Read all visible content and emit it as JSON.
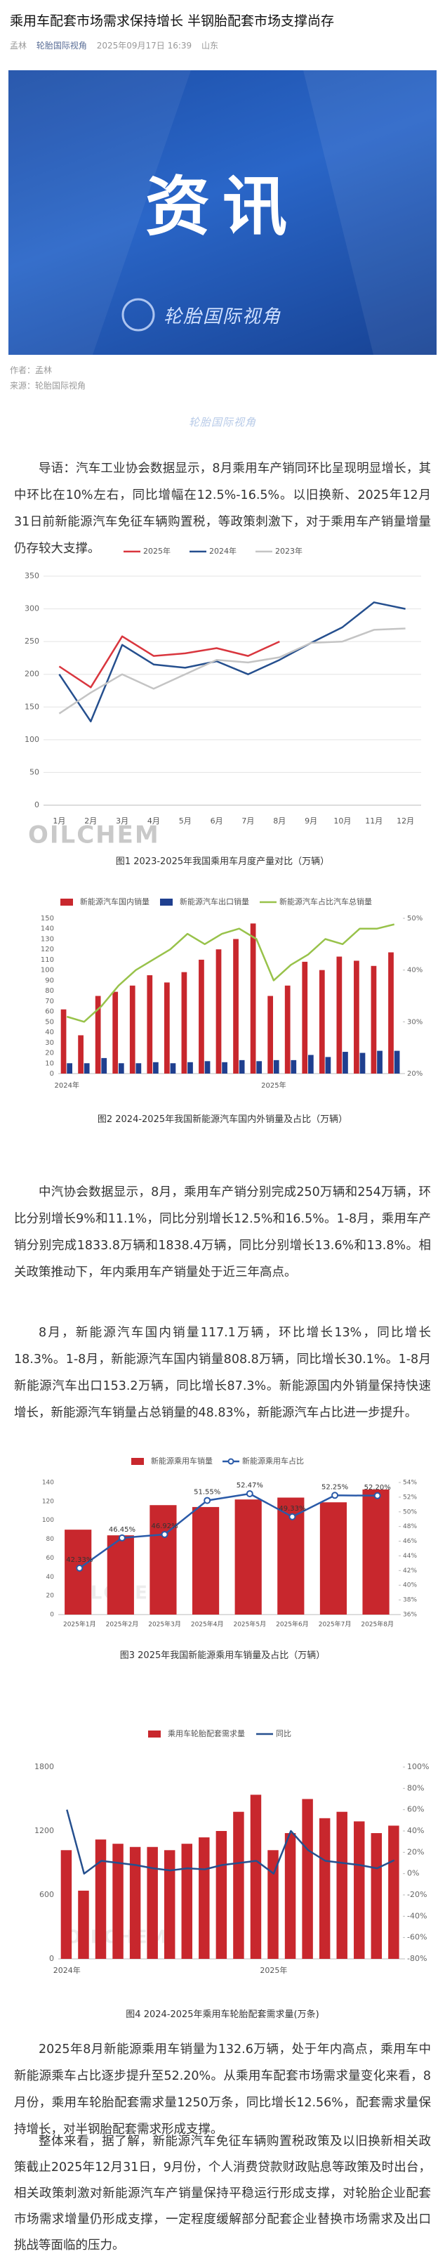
{
  "header": {
    "title": "乘用车配套市场需求保持增长 半钢胎配套市场支撑尚存",
    "author": "孟林",
    "account": "轮胎国际视角",
    "date": "2025年09月17日 16:39",
    "location": "山东"
  },
  "banner": {
    "title": "资讯",
    "brand": "轮胎国际视角"
  },
  "credits": {
    "author": "作者：孟林",
    "source": "来源：轮胎国际视角"
  },
  "paragraphs": [
    "导语：汽车工业协会数据显示，8月乘用车产销同环比呈现明显增长，其中环比在10%左右，同比增幅在12.5%-16.5%。以旧换新、2025年12月31日前新能源汽车免征车辆购置税，等政策刺激下，对于乘用车产销量增量仍存较大支撑。",
    "中汽协会数据显示，8月，乘用车产销分别完成250万辆和254万辆，环比分别增长9%和11.1%，同比分别增长12.5%和16.5%。1-8月，乘用车产销分别完成1833.8万辆和1838.4万辆，同比分别增长13.6%和13.8%。相关政策推动下，年内乘用车产销量处于近三年高点。",
    "8月，新能源汽车国内销量117.1万辆，环比增长13%，同比增长18.3%。1-8月，新能源汽车国内销量808.8万辆，同比增长30.1%。1-8月新能源汽车出口153.2万辆，同比增长87.3%。新能源国内外销量保持快速增长，新能源汽车销量占总销量的48.83%，新能源汽车占比进一步提升。",
    "2025年8月新能源乘用车销量为132.6万辆，处于年内高点，乘用车中新能源乘车占比逐步提升至52.20%。从乘用车配套市场需求量变化来看，8月份，乘用车轮胎配套需求量1250万条，同比增长12.56%，配套需求量保持增长，对半钢胎配套需求形成支撑。",
    "整体来看，据了解，新能源汽车免征车辆购置税政策及以旧换新相关政策截止2025年12月31日，9月份，个人消费贷款财政贴息等政策及时出台，相关政策刺激对新能源汽车产销量保持平稳运行形成支撑，对轮胎企业配套市场需求增量仍形成支撑，一定程度缓解部分配套企业替换市场需求及出口挑战等面临的压力。"
  ],
  "chart_data": [
    {
      "type": "line",
      "caption": "图1  2023-2025年我国乘用车月度产量对比（万辆）",
      "watermark": "OILCHEM",
      "categories": [
        "1月",
        "2月",
        "3月",
        "4月",
        "5月",
        "6月",
        "7月",
        "8月",
        "9月",
        "10月",
        "11月",
        "12月"
      ],
      "series": [
        {
          "name": "2025年",
          "color": "#d9363e",
          "values": [
            212,
            180,
            258,
            228,
            232,
            240,
            228,
            250,
            null,
            null,
            null,
            null
          ]
        },
        {
          "name": "2024年",
          "color": "#254f8e",
          "values": [
            200,
            128,
            245,
            215,
            210,
            220,
            200,
            222,
            248,
            272,
            310,
            300
          ]
        },
        {
          "name": "2023年",
          "color": "#c4c4c4",
          "values": [
            140,
            172,
            200,
            178,
            200,
            222,
            218,
            226,
            248,
            250,
            268,
            270
          ]
        }
      ],
      "ylim": [
        0,
        350
      ],
      "yticks": [
        0,
        50,
        100,
        150,
        200,
        250,
        300,
        350
      ],
      "grid": true,
      "legend": "top"
    },
    {
      "type": "combo",
      "caption": "图2  2024-2025年我国新能源汽车国内外销量及占比（万辆）",
      "categories": [
        "2024年",
        null,
        null,
        null,
        null,
        null,
        null,
        null,
        null,
        null,
        null,
        null,
        "2025年",
        null,
        null,
        null,
        null,
        null,
        null,
        null
      ],
      "series": [
        {
          "name": "新能源汽车国内销量",
          "kind": "bar",
          "color": "#c8272d",
          "values": [
            62,
            37,
            75,
            79,
            85,
            95,
            88,
            98,
            110,
            120,
            130,
            145,
            75,
            85,
            108,
            100,
            113,
            109,
            104,
            117.1
          ]
        },
        {
          "name": "新能源汽车出口销量",
          "kind": "bar",
          "color": "#1f3f8f",
          "values": [
            10,
            10,
            15,
            10,
            10,
            11,
            10,
            11,
            12,
            11,
            13,
            12,
            13,
            13,
            18,
            16,
            21,
            20,
            22,
            22
          ]
        },
        {
          "name": "新能源汽车占比汽车总销量",
          "kind": "line",
          "axis": "y2",
          "color": "#98c24a",
          "values": [
            31,
            30,
            33,
            37,
            40,
            42,
            44,
            47,
            45,
            47,
            48,
            46,
            38,
            41,
            43,
            46,
            45,
            48,
            48,
            48.83
          ]
        }
      ],
      "ylim": [
        0,
        150
      ],
      "yticks": [
        0,
        10,
        20,
        30,
        40,
        50,
        60,
        70,
        80,
        90,
        100,
        110,
        120,
        130,
        140,
        150
      ],
      "y2lim": [
        20,
        50
      ],
      "y2ticks": [
        {
          "value": 20,
          "label": "20%"
        },
        {
          "value": 30,
          "label": "30%"
        },
        {
          "value": 40,
          "label": "40%"
        },
        {
          "value": 50,
          "label": "50%"
        }
      ],
      "grid": false,
      "legend": "top"
    },
    {
      "type": "combo",
      "caption": "图3  2025年我国新能源乘用车销量及占比（万辆）",
      "watermark": "OILCHEM",
      "categories": [
        "2025年1月",
        "2025年2月",
        "2025年3月",
        "2025年4月",
        "2025年5月",
        "2025年6月",
        "2025年7月",
        "2025年8月"
      ],
      "series": [
        {
          "name": "新能源乘用车销量",
          "kind": "bar",
          "color": "#c8272d",
          "values": [
            90,
            84,
            116,
            114,
            122,
            124,
            119,
            132.6
          ]
        },
        {
          "name": "新能源乘用车占比",
          "kind": "line",
          "axis": "y2",
          "color": "#2a5aa8",
          "markers": true,
          "values": [
            42.33,
            46.45,
            46.92,
            51.55,
            52.47,
            49.33,
            52.25,
            52.2
          ],
          "value_labels": [
            "42.33%",
            "46.45%",
            "46.92%",
            "51.55%",
            "52.47%",
            "49.33%",
            "52.25%",
            "52.20%"
          ]
        }
      ],
      "ylim": [
        0,
        140
      ],
      "yticks": [
        0,
        20,
        40,
        60,
        80,
        100,
        120,
        140
      ],
      "y2lim": [
        36,
        54
      ],
      "y2ticks": [
        {
          "value": 36,
          "label": "36%"
        },
        {
          "value": 38,
          "label": "38%"
        },
        {
          "value": 40,
          "label": "40%"
        },
        {
          "value": 42,
          "label": "42%"
        },
        {
          "value": 44,
          "label": "44%"
        },
        {
          "value": 46,
          "label": "46%"
        },
        {
          "value": 48,
          "label": "48%"
        },
        {
          "value": 50,
          "label": "50%"
        },
        {
          "value": 52,
          "label": "52%"
        },
        {
          "value": 54,
          "label": "54%"
        }
      ],
      "grid": false,
      "legend": "top"
    },
    {
      "type": "combo",
      "caption": "图4  2024-2025年乘用车轮胎配套需求量(万条)",
      "watermark": "OILCHEM",
      "categories": [
        "2024年",
        null,
        null,
        null,
        null,
        null,
        null,
        null,
        null,
        null,
        null,
        null,
        "2025年",
        null,
        null,
        null,
        null,
        null,
        null,
        null
      ],
      "series": [
        {
          "name": "乘用车轮胎配套需求量",
          "kind": "bar",
          "color": "#c8272d",
          "values": [
            1020,
            640,
            1120,
            1080,
            1050,
            1050,
            1020,
            1080,
            1140,
            1200,
            1380,
            1540,
            1020,
            1180,
            1500,
            1320,
            1380,
            1290,
            1180,
            1250
          ]
        },
        {
          "name": "同比",
          "kind": "line",
          "axis": "y2",
          "color": "#254f8e",
          "values": [
            60,
            0,
            12,
            10,
            8,
            5,
            3,
            5,
            4,
            8,
            10,
            12,
            0,
            40,
            22,
            12,
            10,
            8,
            5,
            12.56
          ]
        }
      ],
      "ylim": [
        0,
        1800
      ],
      "yticks": [
        0,
        600,
        1200,
        1800
      ],
      "y2lim": [
        -80,
        100
      ],
      "y2ticks": [
        {
          "value": -80,
          "label": "-80%"
        },
        {
          "value": -60,
          "label": "-60%"
        },
        {
          "value": -40,
          "label": "-40%"
        },
        {
          "value": -20,
          "label": "-20%"
        },
        {
          "value": 0,
          "label": "0%"
        },
        {
          "value": 20,
          "label": "20%"
        },
        {
          "value": 40,
          "label": "40%"
        },
        {
          "value": 60,
          "label": "60%"
        },
        {
          "value": 80,
          "label": "80%"
        },
        {
          "value": 100,
          "label": "100%"
        }
      ],
      "grid": false,
      "legend": "top"
    }
  ]
}
